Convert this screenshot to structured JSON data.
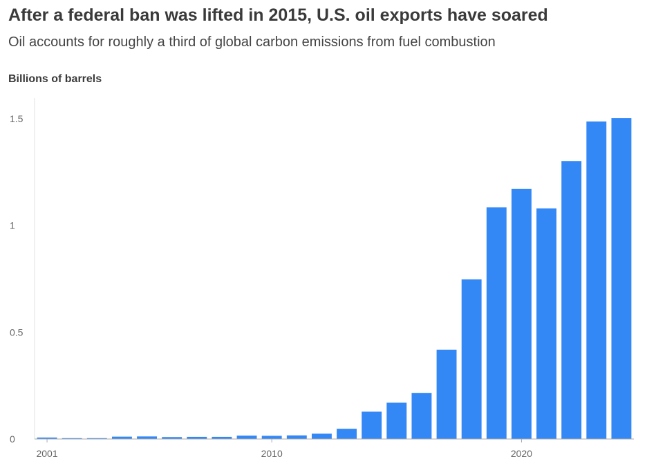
{
  "title": "After a federal ban was lifted in 2015, U.S. oil exports have soared",
  "subtitle": "Oil accounts for roughly a third of global carbon emissions from fuel combustion",
  "chart_data": {
    "type": "bar",
    "ylabel": "Billions of barrels",
    "xlabel": "",
    "categories": [
      "2001",
      "2002",
      "2003",
      "2004",
      "2005",
      "2006",
      "2007",
      "2008",
      "2009",
      "2010",
      "2011",
      "2012",
      "2013",
      "2014",
      "2015",
      "2016",
      "2017",
      "2018",
      "2019",
      "2020",
      "2021",
      "2022",
      "2023",
      "2024"
    ],
    "values": [
      0.007,
      0.004,
      0.004,
      0.011,
      0.012,
      0.009,
      0.01,
      0.01,
      0.016,
      0.015,
      0.017,
      0.025,
      0.048,
      0.128,
      0.17,
      0.216,
      0.418,
      0.748,
      1.085,
      1.171,
      1.08,
      1.302,
      1.487,
      1.503
    ],
    "x_tick_labels": [
      "2001",
      "2010",
      "2020"
    ],
    "y_ticks": [
      {
        "value": 0,
        "label": "0"
      },
      {
        "value": 0.5,
        "label": "0.5"
      },
      {
        "value": 1,
        "label": "1"
      },
      {
        "value": 1.5,
        "label": "1.5"
      }
    ],
    "ylim": [
      0,
      1.5
    ],
    "grid": false,
    "color": "#3388f6"
  }
}
